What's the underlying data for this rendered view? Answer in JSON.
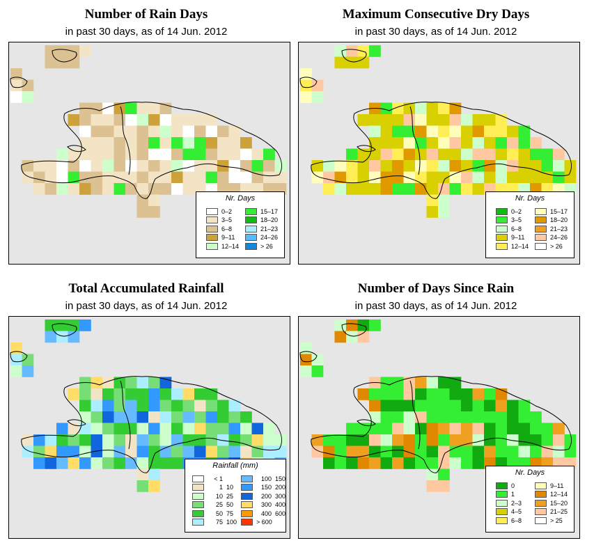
{
  "panels": [
    {
      "id": "rain-days",
      "title": "Number of Rain Days",
      "subtitle": "in past 30 days, as of  14 Jun. 2012",
      "legend": {
        "title": "Nr. Days",
        "items": [
          {
            "label": "0–2",
            "color": "#ffffff"
          },
          {
            "label": "3–5",
            "color": "#f3e4c6"
          },
          {
            "label": "6–8",
            "color": "#dcc292"
          },
          {
            "label": "9–11",
            "color": "#cda23a"
          },
          {
            "label": "12–14",
            "color": "#ccffcc"
          },
          {
            "label": "15–17",
            "color": "#33ee33"
          },
          {
            "label": "18–20",
            "color": "#11bb11"
          },
          {
            "label": "21–23",
            "color": "#aaeeff"
          },
          {
            "label": "24–26",
            "color": "#55bbff"
          },
          {
            "label": "> 26",
            "color": "#1188dd"
          }
        ]
      }
    },
    {
      "id": "dry-days",
      "title": "Maximum Consecutive Dry Days",
      "subtitle": "in past 30 days, as of  14 Jun. 2012",
      "legend": {
        "title": "Nr. Days",
        "items": [
          {
            "label": "0–2",
            "color": "#11bb11"
          },
          {
            "label": "3–5",
            "color": "#33ee33"
          },
          {
            "label": "6–8",
            "color": "#ccffcc"
          },
          {
            "label": "9–11",
            "color": "#d8d000"
          },
          {
            "label": "12–14",
            "color": "#ffee55"
          },
          {
            "label": "15–17",
            "color": "#ffffbb"
          },
          {
            "label": "18–20",
            "color": "#e09a00"
          },
          {
            "label": "21–23",
            "color": "#f0a020"
          },
          {
            "label": "24–26",
            "color": "#ffc8a0"
          },
          {
            "label": "> 26",
            "color": "#ffffff"
          }
        ]
      }
    },
    {
      "id": "total-rainfall",
      "title": "Total Accumulated Rainfall",
      "subtitle": "in past 30 days, as of  14 Jun. 2012",
      "legend": {
        "title": "Rainfall (mm)",
        "items": [
          {
            "low": "< 1",
            "high": "",
            "color": "#ffffff"
          },
          {
            "low": "1",
            "high": "10",
            "color": "#f3e4c6"
          },
          {
            "low": "10",
            "high": "25",
            "color": "#ccffcc"
          },
          {
            "low": "25",
            "high": "50",
            "color": "#77dd77"
          },
          {
            "low": "50",
            "high": "75",
            "color": "#33cc33"
          },
          {
            "low": "75",
            "high": "100",
            "color": "#aaeeff"
          },
          {
            "low": "100",
            "high": "150",
            "color": "#66bbff"
          },
          {
            "low": "150",
            "high": "200",
            "color": "#3399ff"
          },
          {
            "low": "200",
            "high": "300",
            "color": "#1166dd"
          },
          {
            "low": "300",
            "high": "400",
            "color": "#ffdd66"
          },
          {
            "low": "400",
            "high": "600",
            "color": "#ff9900"
          },
          {
            "low": "> 600",
            "high": "",
            "color": "#ff3300"
          }
        ]
      }
    },
    {
      "id": "days-since-rain",
      "title": "Number of Days Since Rain",
      "subtitle": "in past 30 days, as of  14 Jun. 2012",
      "legend": {
        "title": "Nr. Days",
        "items": [
          {
            "label": "0",
            "color": "#11aa11"
          },
          {
            "label": "1",
            "color": "#33ee33"
          },
          {
            "label": "2–3",
            "color": "#ccffcc"
          },
          {
            "label": "4–5",
            "color": "#d8d000"
          },
          {
            "label": "6–8",
            "color": "#ffee55"
          },
          {
            "label": "9–11",
            "color": "#ffffbb"
          },
          {
            "label": "12–14",
            "color": "#e08800"
          },
          {
            "label": "15–20",
            "color": "#f0a020"
          },
          {
            "label": "21–25",
            "color": "#ffc8a0"
          },
          {
            "label": "> 25",
            "color": "#ffffff"
          }
        ]
      }
    }
  ]
}
